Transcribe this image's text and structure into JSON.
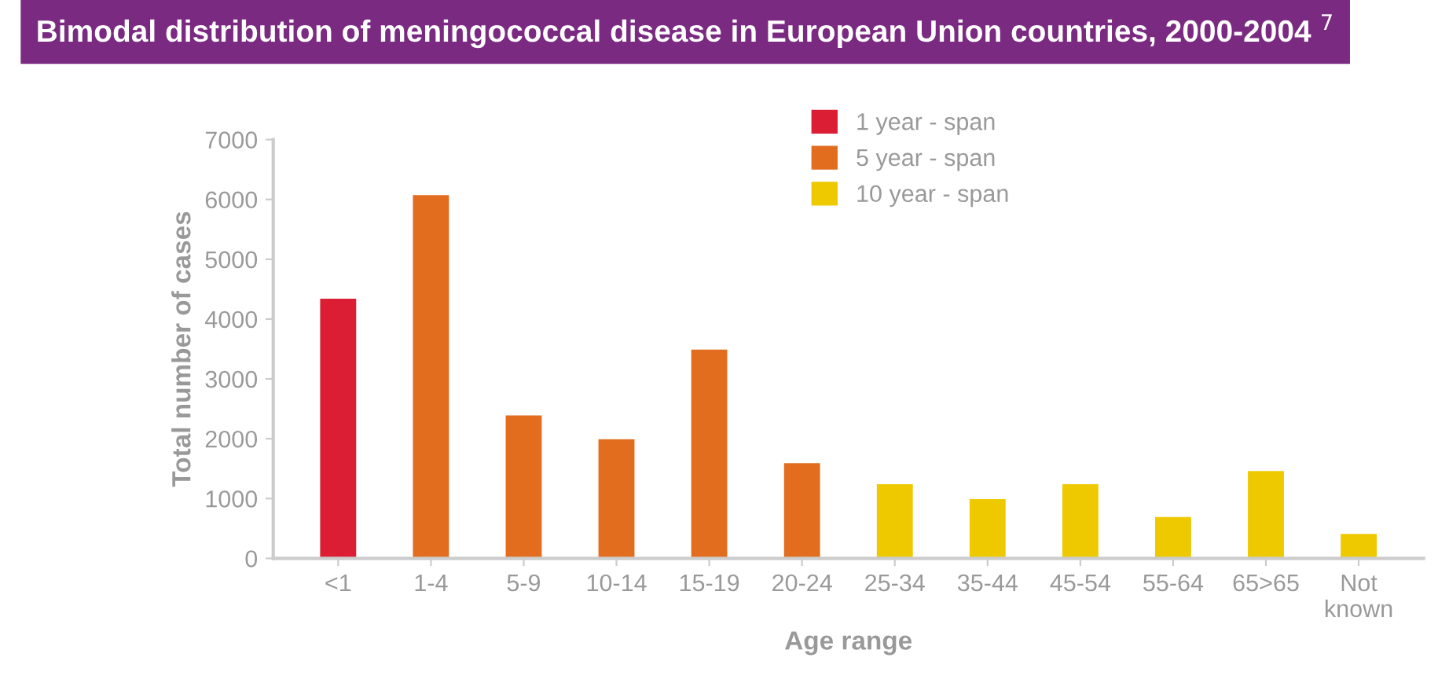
{
  "chart_data": {
    "type": "bar",
    "title": "Bimodal distribution of meningococcal disease in European Union countries, 2000-2004 $^{7}$",
    "xlabel": "Age range",
    "ylabel": "Total number of cases",
    "categories": [
      "<1",
      "1-4",
      "5-9",
      "10-14",
      "15-19",
      "20-24",
      "25-34",
      "35-44",
      "45-54",
      "55-64",
      "65>65",
      "Not\nknown"
    ],
    "series": [
      {
        "name": "1 year - span",
        "color": "#dc1e35",
        "values": [
          4350,
          null,
          null,
          null,
          null,
          null,
          null,
          null,
          null,
          null,
          null,
          null
        ]
      },
      {
        "name": "5 year - span",
        "color": "#e26d1f",
        "values": [
          null,
          6080,
          2400,
          2000,
          3500,
          1600,
          null,
          null,
          null,
          null,
          null,
          null
        ]
      },
      {
        "name": "10 year - span",
        "color": "#eec900",
        "values": [
          null,
          null,
          null,
          null,
          null,
          null,
          1250,
          1000,
          1250,
          700,
          1470,
          420
        ]
      }
    ],
    "ylim": [
      0,
      7000
    ],
    "yticks": [
      0,
      1000,
      2000,
      3000,
      4000,
      5000,
      6000,
      7000
    ],
    "grid": false,
    "legend": "top right"
  }
}
